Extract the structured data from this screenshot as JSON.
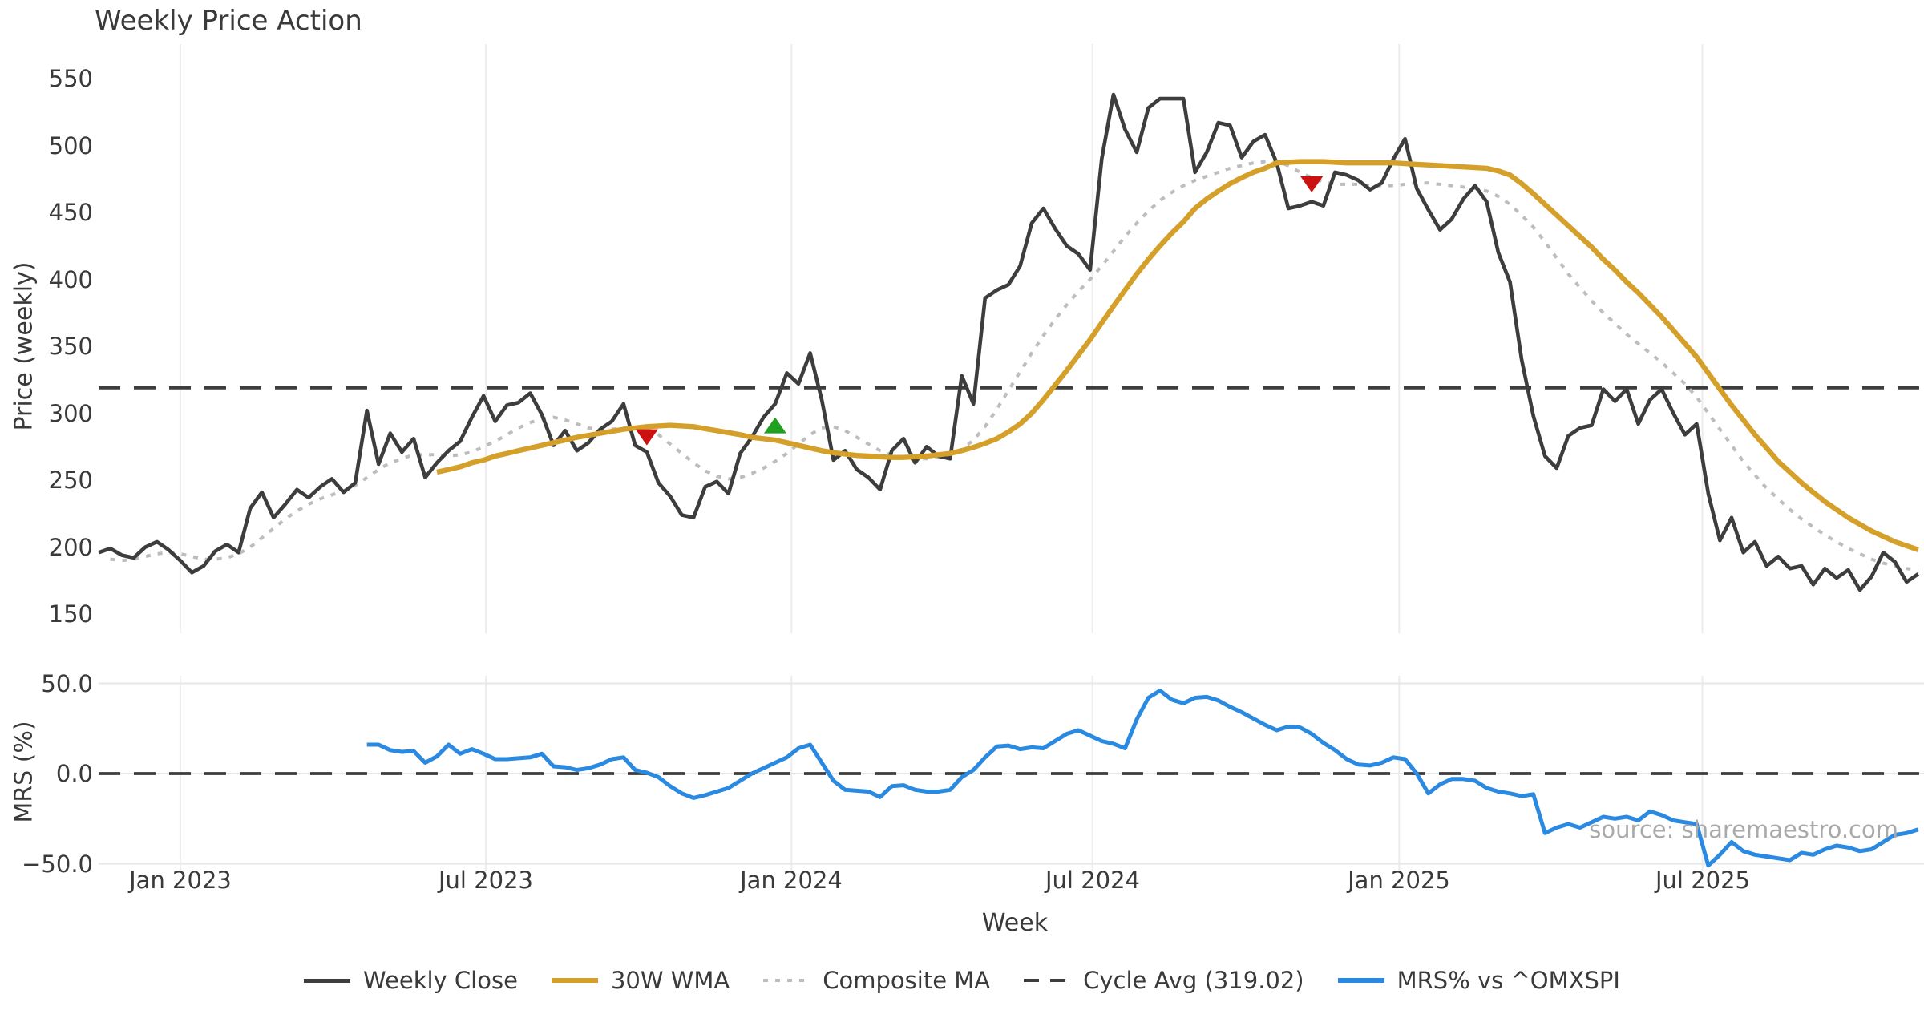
{
  "title": "Weekly Price Action",
  "source_note": "source: sharemaestro.com",
  "colors": {
    "background": "#ffffff",
    "text": "#3a3a3a",
    "grid": "#ececec",
    "grid_horizontal": "#e7e7e7",
    "weekly_close": "#3d3d3d",
    "wma_30w": "#d4a029",
    "composite_ma": "#bdbdbd",
    "cycle_avg": "#3d3d3d",
    "mrs": "#2a89e0",
    "sell_marker": "#cc1111",
    "buy_marker": "#1fa11f",
    "source_text": "#a9a9a9"
  },
  "legend": [
    {
      "label": "Weekly Close",
      "style": "solid-dark"
    },
    {
      "label": "30W WMA",
      "style": "solid-gold"
    },
    {
      "label": "Composite MA",
      "style": "dotted-gray"
    },
    {
      "label": "Cycle Avg (319.02)",
      "style": "dashed-dark"
    },
    {
      "label": "MRS% vs ^OMXSPI",
      "style": "solid-blue"
    }
  ],
  "chart_data": {
    "type": "line",
    "title": "Weekly Price Action",
    "x_axis": {
      "label": "Week",
      "ticks": [
        {
          "label": "Jan 2023",
          "week": 7
        },
        {
          "label": "Jul 2023",
          "week": 33.2
        },
        {
          "label": "Jan 2024",
          "week": 59.4
        },
        {
          "label": "Jul 2024",
          "week": 85.2
        },
        {
          "label": "Jan 2025",
          "week": 111.5
        },
        {
          "label": "Jul 2025",
          "week": 137.5
        }
      ]
    },
    "panels": [
      {
        "name": "price",
        "ylabel": "Price (weekly)",
        "ylim": [
          150,
          550
        ],
        "yticks": [
          {
            "value": 550,
            "label": "550"
          },
          {
            "value": 500,
            "label": "500"
          },
          {
            "value": 450,
            "label": "450"
          },
          {
            "value": 400,
            "label": "400"
          },
          {
            "value": 350,
            "label": "350"
          },
          {
            "value": 300,
            "label": "300"
          },
          {
            "value": 250,
            "label": "250"
          },
          {
            "value": 200,
            "label": "200"
          },
          {
            "value": 150,
            "label": "150"
          }
        ],
        "cycle_avg": 319.02,
        "grid": "vertical-only"
      },
      {
        "name": "mrs",
        "ylabel": "MRS (%)",
        "ylim": [
          -55,
          52
        ],
        "yticks": [
          {
            "value": 50,
            "label": "50.0"
          },
          {
            "value": 0,
            "label": "0.0"
          },
          {
            "value": -50,
            "label": "−50.0"
          }
        ],
        "zero_line": 0,
        "grid": "horizontal-and-vertical"
      }
    ],
    "series": {
      "weekly_close": {
        "panel": "price",
        "start_week": 0,
        "values": [
          196,
          199,
          194,
          192,
          200,
          204,
          198,
          190,
          181,
          186,
          197,
          202,
          196,
          229,
          241,
          222,
          232,
          243,
          237,
          245,
          251,
          241,
          248,
          302,
          262,
          285,
          271,
          281,
          252,
          263,
          272,
          279,
          297,
          313,
          294,
          306,
          308,
          315,
          299,
          276,
          287,
          272,
          278,
          288,
          294,
          307,
          276,
          271,
          248,
          238,
          224,
          222,
          245,
          249,
          240,
          270,
          282,
          297,
          307,
          330,
          322,
          345,
          310,
          265,
          272,
          258,
          252,
          243,
          272,
          281,
          263,
          275,
          268,
          266,
          328,
          307,
          386,
          392,
          396,
          410,
          442,
          453,
          438,
          425,
          419,
          407,
          490,
          538,
          512,
          495,
          528,
          535,
          535,
          535,
          480,
          495,
          517,
          515,
          491,
          503,
          508,
          487,
          453,
          455,
          458,
          455,
          480,
          478,
          474,
          467,
          472,
          490,
          505,
          468,
          452,
          437,
          445,
          460,
          470,
          458,
          420,
          398,
          340,
          298,
          268,
          259,
          283,
          289,
          291,
          318,
          309,
          318,
          292,
          310,
          318,
          300,
          284,
          292,
          240,
          205,
          222,
          196,
          204,
          186,
          193,
          184,
          186,
          172,
          184,
          177,
          183,
          168,
          178,
          196,
          189,
          174,
          180
        ]
      },
      "wma_30w": {
        "panel": "price",
        "start_week": 29,
        "values": [
          256,
          258,
          260,
          263,
          265,
          268,
          270,
          272,
          274,
          276,
          278,
          280,
          282,
          283.5,
          285,
          286.5,
          288,
          289,
          290,
          290.5,
          291,
          290.5,
          290,
          288.5,
          287,
          285.5,
          284,
          282,
          281,
          280,
          278,
          276,
          274,
          272,
          270.5,
          269.5,
          268.5,
          268,
          267.5,
          267,
          267,
          267.5,
          268,
          269,
          270,
          272,
          274.5,
          277.5,
          281,
          286,
          292,
          300,
          310,
          321,
          332,
          343.5,
          355,
          367.5,
          380,
          392,
          404,
          415,
          425,
          434.5,
          443,
          453,
          460,
          466,
          471.5,
          476,
          480,
          483,
          487,
          487.5,
          488,
          488,
          488,
          487.5,
          487,
          487,
          487,
          487,
          487,
          486.5,
          486,
          485.5,
          485,
          484.5,
          484,
          483.5,
          483,
          481,
          478,
          471.5,
          464,
          456,
          448,
          440,
          432,
          424,
          415,
          407,
          398,
          390,
          381,
          372,
          362,
          352,
          342,
          330,
          318,
          306,
          295,
          284,
          274,
          264,
          256,
          248,
          241,
          234,
          228,
          222,
          217,
          212,
          208,
          204,
          201,
          198
        ]
      },
      "composite_ma": {
        "panel": "price",
        "start_week": 1,
        "values": [
          191,
          190,
          191,
          193,
          195,
          196,
          195,
          193,
          191,
          191,
          192,
          195,
          200,
          207,
          214,
          221,
          227,
          232,
          236,
          239,
          242,
          246,
          252,
          258,
          263,
          266,
          269,
          269,
          269,
          268,
          269,
          271,
          275,
          279,
          284,
          289,
          293,
          296,
          297,
          295,
          292,
          289,
          288,
          288,
          289,
          290,
          288,
          284,
          277,
          270,
          263,
          257,
          253,
          251,
          252,
          255,
          259,
          264,
          270,
          277,
          284,
          289,
          290,
          287,
          282,
          277,
          272,
          269,
          267,
          266,
          266,
          267,
          269,
          273,
          280,
          290,
          303,
          317,
          331,
          345,
          358,
          370,
          381,
          391,
          400,
          410,
          421,
          432,
          442,
          451,
          459,
          465,
          470,
          474,
          477,
          480,
          483,
          485,
          487,
          488,
          488,
          485,
          480,
          476,
          473,
          471,
          471,
          471,
          470,
          470,
          470,
          471,
          472,
          472,
          471,
          470,
          469,
          468,
          466,
          462,
          456,
          448,
          439,
          428,
          416,
          404,
          394,
          384,
          375,
          367,
          359,
          352,
          345,
          338,
          330,
          322,
          312,
          300,
          288,
          276,
          264,
          254,
          244,
          236,
          228,
          221,
          215,
          209,
          204,
          199,
          195,
          191,
          188,
          186,
          184,
          183
        ]
      },
      "mrs_pct": {
        "panel": "mrs",
        "start_week": 23,
        "values": [
          16,
          16,
          13,
          12,
          12.5,
          6,
          9.5,
          16,
          11,
          13.5,
          11,
          8,
          8,
          8.5,
          9,
          11,
          4,
          3.5,
          2,
          3,
          5,
          8,
          9,
          2,
          0.5,
          -2,
          -7,
          -11,
          -13.5,
          -12,
          -10,
          -8,
          -4,
          0,
          3,
          6,
          9,
          14,
          16,
          6,
          -4,
          -9,
          -9.5,
          -10,
          -13,
          -7,
          -6.5,
          -9,
          -10,
          -10,
          -9,
          -2,
          2,
          9,
          15,
          15.5,
          13.5,
          14.5,
          14,
          18,
          22,
          24,
          21,
          18,
          16.5,
          14,
          30,
          42,
          46,
          41,
          39,
          42,
          42.5,
          40.5,
          37,
          34,
          30.5,
          27,
          24,
          26,
          25.5,
          22,
          17,
          13,
          8,
          5,
          4.5,
          6,
          9,
          8,
          0,
          -11,
          -6,
          -3,
          -3,
          -4,
          -8,
          -10,
          -11,
          -12.5,
          -11.5,
          -33,
          -30,
          -28,
          -30,
          -27,
          -24,
          -25,
          -24,
          -26,
          -21,
          -23,
          -26,
          -27,
          -28,
          -51,
          -45,
          -38,
          -43,
          -45,
          -46,
          -47,
          -48,
          -44,
          -45,
          -42,
          -40,
          -41,
          -43,
          -42,
          -38,
          -34,
          -33,
          -31
        ]
      }
    },
    "markers": [
      {
        "name": "sell-marker",
        "shape": "triangle-down",
        "color": "#cc1111",
        "week": 47,
        "value": 282
      },
      {
        "name": "buy-marker",
        "shape": "triangle-up",
        "color": "#1fa11f",
        "week": 58,
        "value": 291
      },
      {
        "name": "sell-marker",
        "shape": "triangle-down",
        "color": "#cc1111",
        "week": 104,
        "value": 471
      }
    ],
    "legend_position": "bottom-center",
    "grid_on": true
  }
}
